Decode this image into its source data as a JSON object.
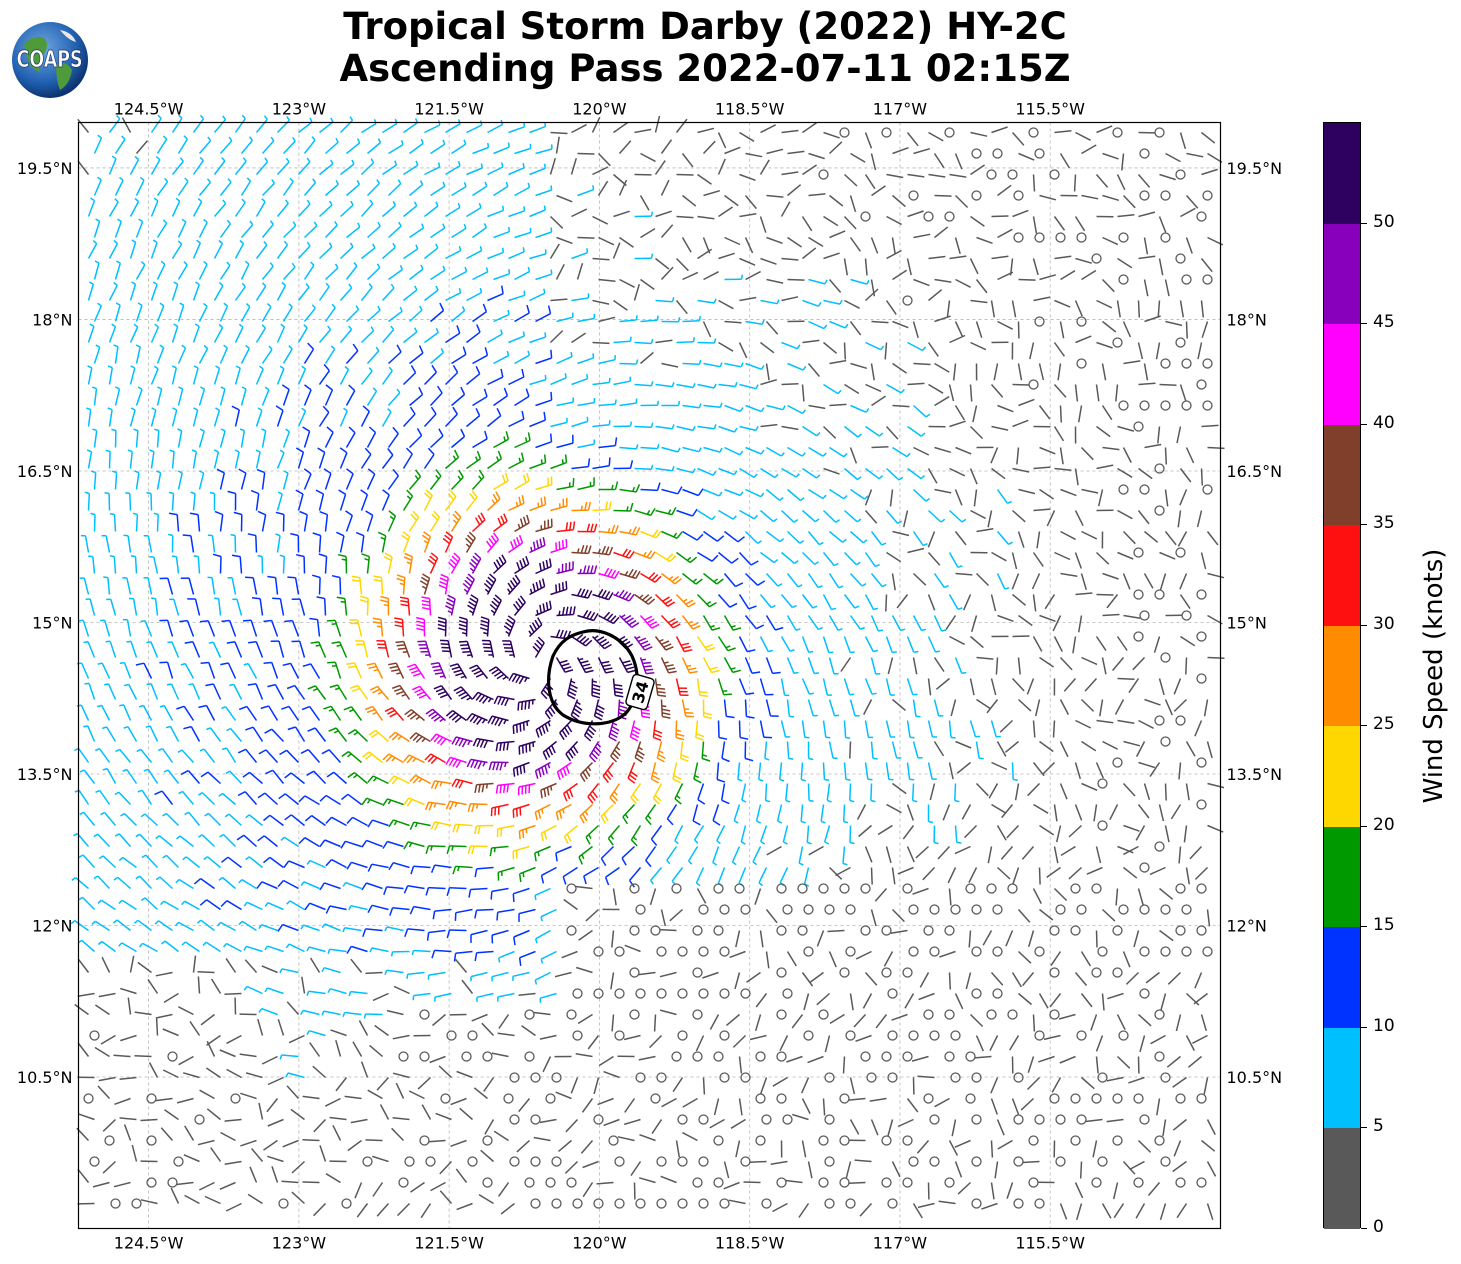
{
  "title": {
    "line1": "Tropical Storm Darby (2022) HY-2C",
    "line2": "Ascending Pass 2022-07-11 02:15Z"
  },
  "logo": {
    "text": "COAPS",
    "icon": "globe-logo-icon"
  },
  "map": {
    "lon_range": [
      -125.2,
      -113.8
    ],
    "lat_range": [
      9.0,
      19.95
    ],
    "grid": true,
    "lon_ticks": [
      {
        "value": -124.5,
        "label": "124.5°W"
      },
      {
        "value": -123.0,
        "label": "123°W"
      },
      {
        "value": -121.5,
        "label": "121.5°W"
      },
      {
        "value": -120.0,
        "label": "120°W"
      },
      {
        "value": -118.5,
        "label": "118.5°W"
      },
      {
        "value": -117.0,
        "label": "117°W"
      },
      {
        "value": -115.5,
        "label": "115.5°W"
      }
    ],
    "lat_ticks": [
      {
        "value": 19.5,
        "label": "19.5°N"
      },
      {
        "value": 18.0,
        "label": "18°N"
      },
      {
        "value": 16.5,
        "label": "16.5°N"
      },
      {
        "value": 15.0,
        "label": "15°N"
      },
      {
        "value": 13.5,
        "label": "13.5°N"
      },
      {
        "value": 12.0,
        "label": "12°N"
      },
      {
        "value": 10.5,
        "label": "10.5°N"
      }
    ],
    "storm_center": {
      "lon": -120.6,
      "lat": 14.6
    },
    "contour": {
      "label": "34",
      "color": "#000000"
    }
  },
  "colorbar": {
    "label": "Wind Speed (knots)",
    "bounds": [
      0,
      5,
      10,
      15,
      20,
      25,
      30,
      35,
      40,
      45,
      50
    ],
    "bound_labels": [
      "0",
      "5",
      "10",
      "15",
      "20",
      "25",
      "30",
      "35",
      "40",
      "45",
      "50"
    ],
    "colors": [
      "#595959",
      "#00bfff",
      "#0033ff",
      "#009900",
      "#ffd700",
      "#ff8c00",
      "#ff1010",
      "#7f3f2a",
      "#ff00ff",
      "#8800bb",
      "#2e0060"
    ]
  }
}
